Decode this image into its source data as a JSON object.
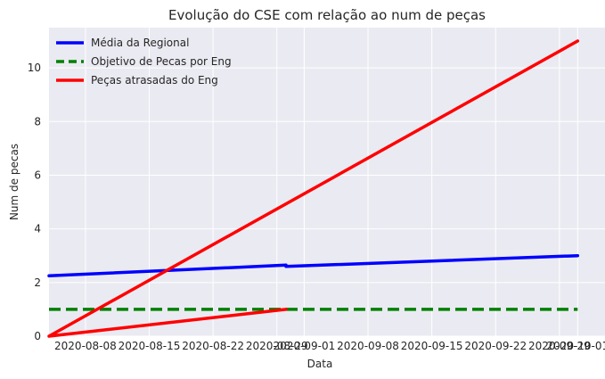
{
  "chart_data": {
    "type": "line",
    "title": "Evolução do CSE com relação ao num de peças",
    "xlabel": "Data",
    "ylabel": "Num de pecas",
    "x_type": "date",
    "xlim": [
      "2020-08-04",
      "2020-10-04"
    ],
    "ylim": [
      0,
      11.5
    ],
    "x_ticks": [
      "2020-08-08",
      "2020-08-15",
      "2020-08-22",
      "2020-08-29",
      "2020-09-01",
      "2020-09-08",
      "2020-09-15",
      "2020-09-22",
      "2020-09-29",
      "2020-10-01"
    ],
    "y_ticks": [
      0,
      2,
      4,
      6,
      8,
      10
    ],
    "grid": true,
    "background": "#eaeaf2",
    "legend_position": "top-left",
    "series": [
      {
        "name": "Média da Regional",
        "color": "#0000ff",
        "dash": "solid",
        "points": [
          {
            "x": "2020-08-04",
            "y": 2.25
          },
          {
            "x": "2020-08-30",
            "y": 2.65
          },
          {
            "x": "2020-08-30",
            "y": 2.6
          },
          {
            "x": "2020-10-01",
            "y": 3.0
          }
        ]
      },
      {
        "name": "Objetivo de Pecas por Eng",
        "color": "#008000",
        "dash": "dashed",
        "points": [
          {
            "x": "2020-08-04",
            "y": 1.0
          },
          {
            "x": "2020-08-30",
            "y": 1.0
          },
          {
            "x": "2020-10-01",
            "y": 1.0
          }
        ]
      },
      {
        "name": "Peças atrasadas do Eng",
        "color": "#ff0000",
        "dash": "solid",
        "points": [
          {
            "x": "2020-08-04",
            "y": 0
          },
          {
            "x": "2020-08-30",
            "y": 1.0
          },
          {
            "x": "2020-08-04",
            "y": 0
          },
          {
            "x": "2020-10-01",
            "y": 11.0
          }
        ]
      }
    ]
  }
}
